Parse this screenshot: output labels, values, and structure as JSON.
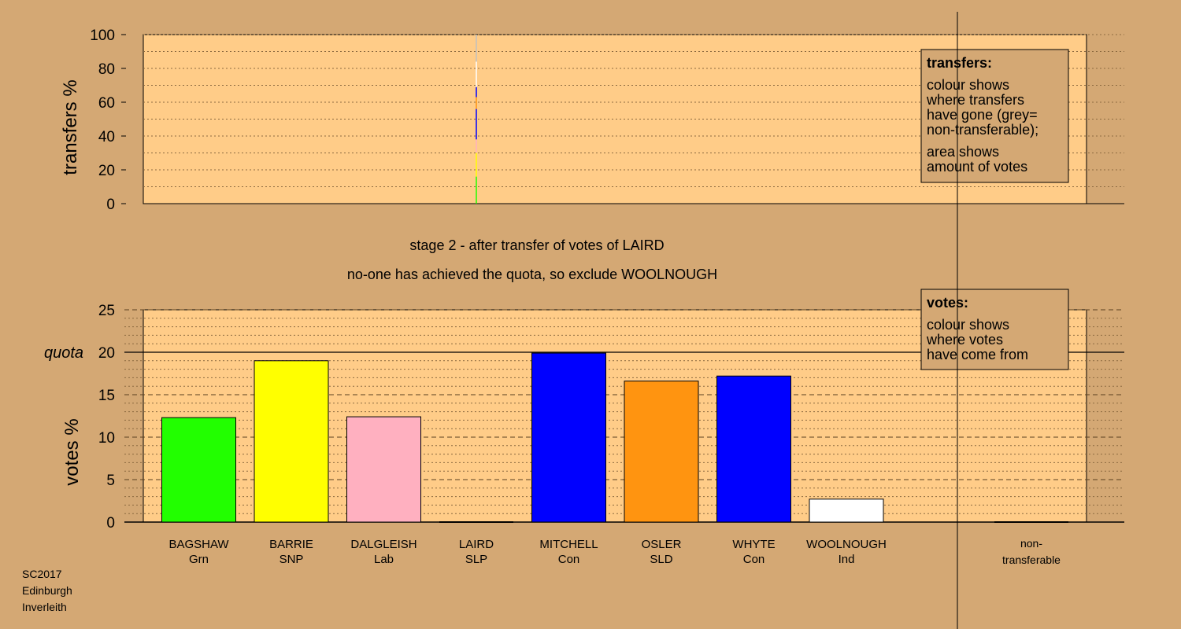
{
  "colors": {
    "background": "#d4a874",
    "plot_fill": "#ffcc88",
    "legend_fill": "#d4a874",
    "grid_dotted": "#8c6a40",
    "axis": "#000000"
  },
  "top": {
    "ylabel": "transfers %",
    "yticks": [
      "0",
      "20",
      "40",
      "60",
      "80",
      "100"
    ]
  },
  "legend_transfers": {
    "title": "transfers:",
    "lines1": [
      "colour shows",
      "where transfers",
      "have gone (grey=",
      "non-transferable);"
    ],
    "lines2": [
      "area shows",
      "amount of votes"
    ]
  },
  "legend_votes": {
    "title": "votes:",
    "lines": [
      "colour shows",
      "where votes",
      "have come from"
    ]
  },
  "stage_text": "stage 2 - after transfer of votes of LAIRD",
  "status_text": "no-one has achieved the quota, so exclude WOOLNOUGH",
  "bottom": {
    "ylabel": "votes %",
    "quota_label": "quota",
    "yticks": [
      "0",
      "5",
      "10",
      "15",
      "20",
      "25"
    ]
  },
  "footer": [
    "SC2017",
    "Edinburgh",
    "Inverleith"
  ],
  "chart_data": [
    {
      "type": "bar",
      "name": "transfers",
      "ylabel": "transfers %",
      "ylim": [
        0,
        100
      ],
      "x_position": "LAIRD",
      "segments": [
        {
          "to": "BAGSHAW",
          "color": "#22ff00",
          "from": 0,
          "to_value": 16
        },
        {
          "to": "BARRIE",
          "color": "#ffff00",
          "from": 16,
          "to_value": 30
        },
        {
          "to": "DALGLEISH",
          "color": "#ffb0c0",
          "from": 30,
          "to_value": 38
        },
        {
          "to": "MITCHELL",
          "color": "#0000ff",
          "from": 38,
          "to_value": 56
        },
        {
          "to": "OSLER",
          "color": "#ff9410",
          "from": 56,
          "to_value": 63
        },
        {
          "to": "WHYTE",
          "color": "#0000ff",
          "from": 63,
          "to_value": 69
        },
        {
          "to": "WOOLNOUGH",
          "color": "#ffffff",
          "from": 69,
          "to_value": 84
        },
        {
          "to": "non-transferable",
          "color": "#c0c0c0",
          "from": 84,
          "to_value": 100
        }
      ],
      "grid": true
    },
    {
      "type": "bar",
      "name": "votes",
      "ylabel": "votes %",
      "ylim": [
        0,
        25
      ],
      "quota": 20,
      "categories": [
        {
          "name": "BAGSHAW",
          "party": "Grn"
        },
        {
          "name": "BARRIE",
          "party": "SNP"
        },
        {
          "name": "DALGLEISH",
          "party": "Lab"
        },
        {
          "name": "LAIRD",
          "party": "SLP"
        },
        {
          "name": "MITCHELL",
          "party": "Con"
        },
        {
          "name": "OSLER",
          "party": "SLD"
        },
        {
          "name": "WHYTE",
          "party": "Con"
        },
        {
          "name": "WOOLNOUGH",
          "party": "Ind"
        }
      ],
      "values": [
        12.3,
        19.0,
        12.4,
        0,
        19.9,
        16.6,
        17.2,
        2.7
      ],
      "bar_colors": [
        "#22ff00",
        "#ffff00",
        "#ffb0c0",
        "#0000ff",
        "#0000ff",
        "#ff9410",
        "#0000ff",
        "#ffffff"
      ],
      "extra_category": {
        "line1": "non-",
        "line2": "transferable",
        "value": 0
      },
      "grid": true
    }
  ]
}
